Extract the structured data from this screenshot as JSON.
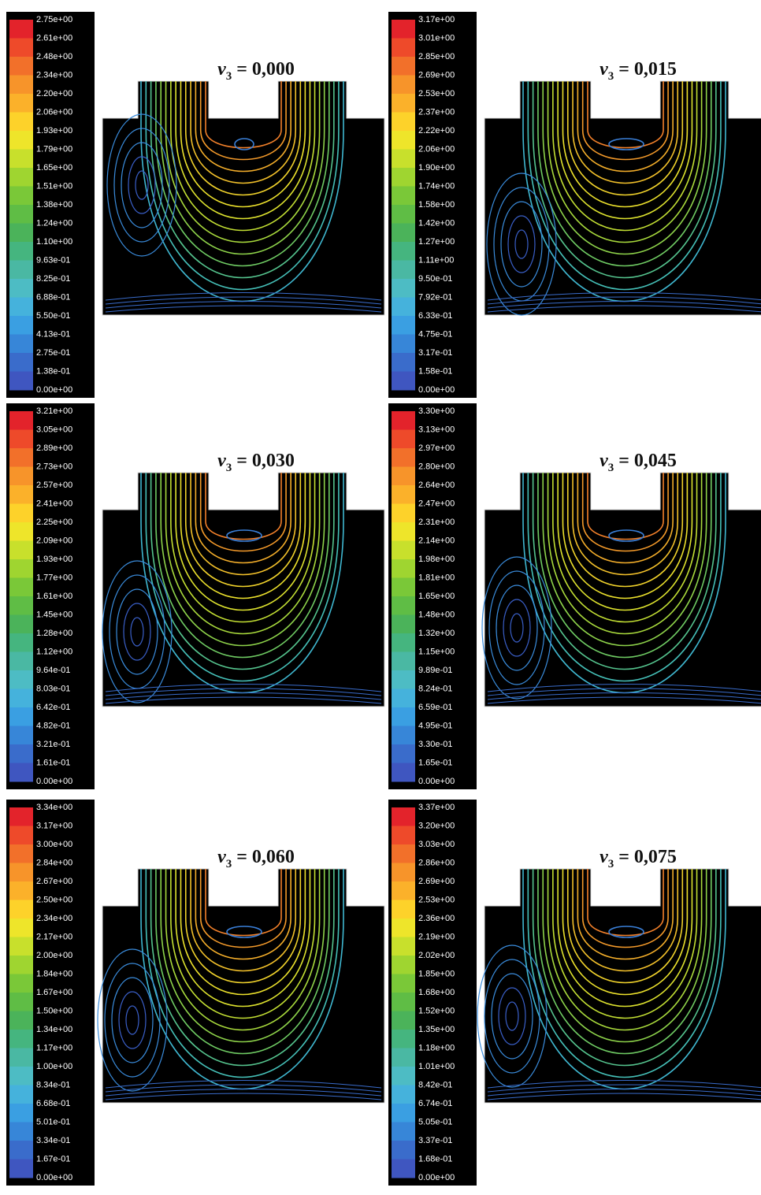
{
  "panels": [
    {
      "title": {
        "symbol": "v",
        "subscript": "3",
        "value": "= 0,000"
      },
      "colorbar": [
        "2.75e+00",
        "2.61e+00",
        "2.48e+00",
        "2.34e+00",
        "2.20e+00",
        "2.06e+00",
        "1.93e+00",
        "1.79e+00",
        "1.65e+00",
        "1.51e+00",
        "1.38e+00",
        "1.24e+00",
        "1.10e+00",
        "9.63e-01",
        "8.25e-01",
        "6.88e-01",
        "5.50e-01",
        "4.13e-01",
        "2.75e-01",
        "1.38e-01",
        "0.00e+00"
      ]
    },
    {
      "title": {
        "symbol": "v",
        "subscript": "3",
        "value": "= 0,015"
      },
      "colorbar": [
        "3.17e+00",
        "3.01e+00",
        "2.85e+00",
        "2.69e+00",
        "2.53e+00",
        "2.37e+00",
        "2.22e+00",
        "2.06e+00",
        "1.90e+00",
        "1.74e+00",
        "1.58e+00",
        "1.42e+00",
        "1.27e+00",
        "1.11e+00",
        "9.50e-01",
        "7.92e-01",
        "6.33e-01",
        "4.75e-01",
        "3.17e-01",
        "1.58e-01",
        "0.00e+00"
      ]
    },
    {
      "title": {
        "symbol": "v",
        "subscript": "3",
        "value": "= 0,030"
      },
      "colorbar": [
        "3.21e+00",
        "3.05e+00",
        "2.89e+00",
        "2.73e+00",
        "2.57e+00",
        "2.41e+00",
        "2.25e+00",
        "2.09e+00",
        "1.93e+00",
        "1.77e+00",
        "1.61e+00",
        "1.45e+00",
        "1.28e+00",
        "1.12e+00",
        "9.64e-01",
        "8.03e-01",
        "6.42e-01",
        "4.82e-01",
        "3.21e-01",
        "1.61e-01",
        "0.00e+00"
      ]
    },
    {
      "title": {
        "symbol": "v",
        "subscript": "3",
        "value": "= 0,045"
      },
      "colorbar": [
        "3.30e+00",
        "3.13e+00",
        "2.97e+00",
        "2.80e+00",
        "2.64e+00",
        "2.47e+00",
        "2.31e+00",
        "2.14e+00",
        "1.98e+00",
        "1.81e+00",
        "1.65e+00",
        "1.48e+00",
        "1.32e+00",
        "1.15e+00",
        "9.89e-01",
        "8.24e-01",
        "6.59e-01",
        "4.95e-01",
        "3.30e-01",
        "1.65e-01",
        "0.00e+00"
      ]
    },
    {
      "title": {
        "symbol": "v",
        "subscript": "3",
        "value": "= 0,060"
      },
      "colorbar": [
        "3.34e+00",
        "3.17e+00",
        "3.00e+00",
        "2.84e+00",
        "2.67e+00",
        "2.50e+00",
        "2.34e+00",
        "2.17e+00",
        "2.00e+00",
        "1.84e+00",
        "1.67e+00",
        "1.50e+00",
        "1.34e+00",
        "1.17e+00",
        "1.00e+00",
        "8.34e-01",
        "6.68e-01",
        "5.01e-01",
        "3.34e-01",
        "1.67e-01",
        "0.00e+00"
      ]
    },
    {
      "title": {
        "symbol": "v",
        "subscript": "3",
        "value": "= 0,075"
      },
      "colorbar": [
        "3.37e+00",
        "3.20e+00",
        "3.03e+00",
        "2.86e+00",
        "2.69e+00",
        "2.53e+00",
        "2.36e+00",
        "2.19e+00",
        "2.02e+00",
        "1.85e+00",
        "1.68e+00",
        "1.52e+00",
        "1.35e+00",
        "1.18e+00",
        "1.01e+00",
        "8.42e-01",
        "6.74e-01",
        "5.05e-01",
        "3.37e-01",
        "1.68e-01",
        "0.00e+00"
      ]
    }
  ]
}
